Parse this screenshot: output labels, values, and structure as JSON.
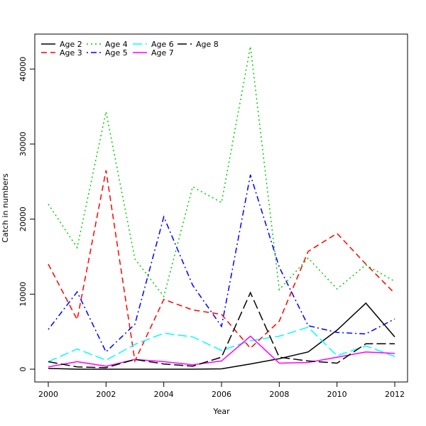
{
  "chart_data": {
    "type": "line",
    "title": "",
    "xlabel": "Year",
    "ylabel": "Catch in numbers",
    "xlim": [
      2000,
      2012
    ],
    "ylim": [
      0,
      44000
    ],
    "x": [
      2000,
      2001,
      2002,
      2003,
      2004,
      2005,
      2006,
      2007,
      2008,
      2009,
      2010,
      2011,
      2012
    ],
    "x_ticks": [
      "2000",
      "2002",
      "2004",
      "2006",
      "2008",
      "2010",
      "2012"
    ],
    "y_ticks": [
      "0",
      "10000",
      "20000",
      "30000",
      "40000"
    ],
    "grid": false,
    "legend_position": "top-left",
    "series": [
      {
        "name": "Age 2",
        "color": "#000000",
        "style": "solid",
        "values": [
          100,
          0,
          0,
          0,
          0,
          0,
          50,
          700,
          1400,
          2300,
          5200,
          8800,
          4300
        ]
      },
      {
        "name": "Age 3",
        "color": "#ff0000",
        "style": "dashed",
        "values": [
          14000,
          6600,
          26500,
          1100,
          9300,
          7900,
          7300,
          2800,
          6400,
          15700,
          18100,
          14000,
          10100
        ]
      },
      {
        "name": "Age 4",
        "color": "#00cd00",
        "style": "dotted",
        "values": [
          22000,
          16200,
          34300,
          14700,
          9700,
          24300,
          22200,
          43000,
          10600,
          14800,
          10700,
          13900,
          11700
        ]
      },
      {
        "name": "Age 5",
        "color": "#0000ff",
        "style": "dotdash",
        "values": [
          5300,
          10300,
          2300,
          6000,
          20300,
          11200,
          5700,
          25900,
          13600,
          5800,
          4900,
          4700,
          6700
        ]
      },
      {
        "name": "Age 6",
        "color": "#00ffff",
        "style": "longdash",
        "values": [
          1000,
          2700,
          1200,
          3300,
          4800,
          4300,
          2500,
          3800,
          4400,
          5600,
          1800,
          3100,
          1700
        ]
      },
      {
        "name": "Age 7",
        "color": "#ff00ff",
        "style": "solid",
        "values": [
          300,
          1000,
          400,
          1300,
          1000,
          600,
          1100,
          4400,
          800,
          900,
          1600,
          2300,
          2100
        ]
      },
      {
        "name": "Age 8",
        "color": "#000000",
        "style": "longdash",
        "values": [
          1000,
          300,
          200,
          1300,
          700,
          400,
          1600,
          10200,
          1600,
          1100,
          800,
          3400,
          3400
        ]
      }
    ]
  }
}
